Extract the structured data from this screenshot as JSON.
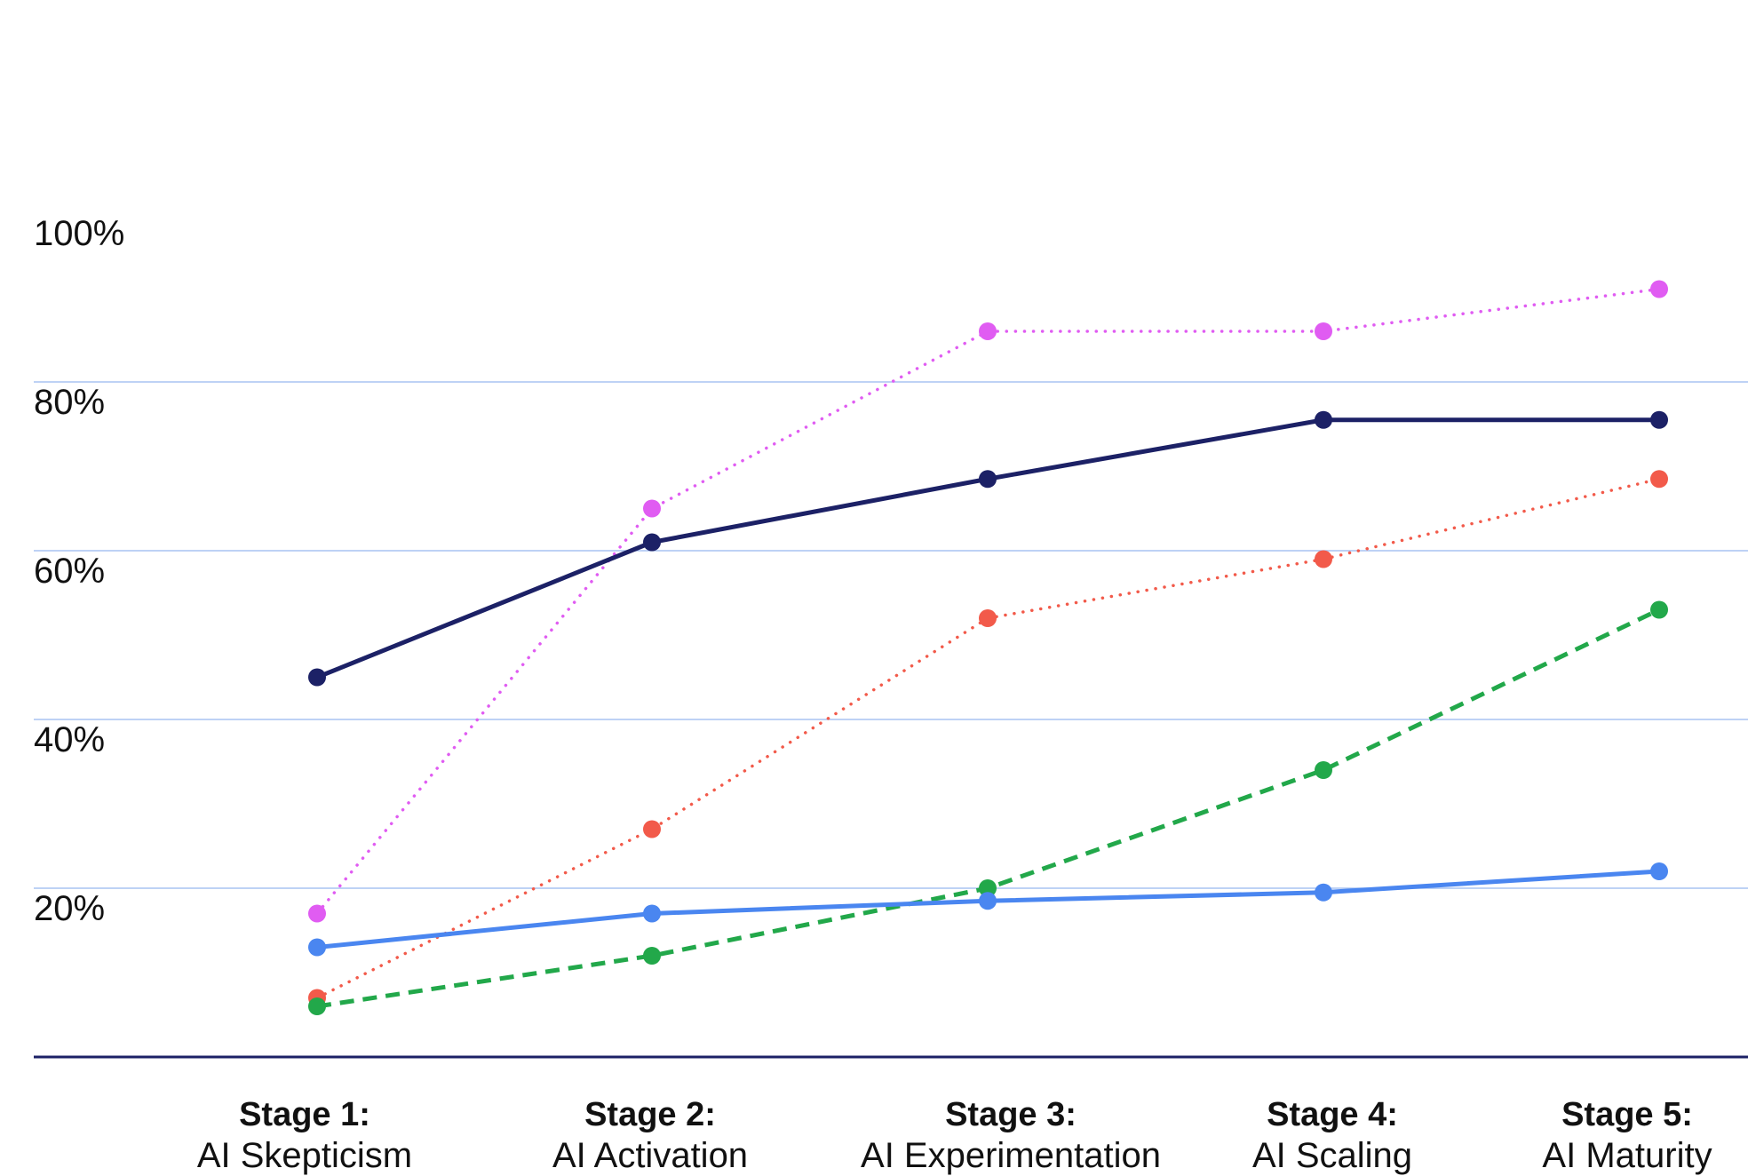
{
  "chart_data": {
    "type": "line",
    "categories": [
      {
        "line1": "Stage 1:",
        "line2": "AI Skepticism"
      },
      {
        "line1": "Stage 2:",
        "line2": "AI Activation"
      },
      {
        "line1": "Stage 3:",
        "line2": "AI Experimentation"
      },
      {
        "line1": "Stage 4:",
        "line2": "AI Scaling"
      },
      {
        "line1": "Stage 5:",
        "line2": "AI Maturity"
      }
    ],
    "yticks": [
      "20%",
      "40%",
      "60%",
      "80%",
      "100%"
    ],
    "ylim": [
      0,
      100
    ],
    "grid": true,
    "legend": "none",
    "series": [
      {
        "color": "#E05CF2",
        "dash": "dotted",
        "values": [
          17,
          65,
          86,
          86,
          91
        ]
      },
      {
        "color": "#1C2166",
        "dash": "solid",
        "values": [
          45,
          61,
          68.5,
          75.5,
          75.5
        ]
      },
      {
        "color": "#F25A4A",
        "dash": "dotted",
        "values": [
          7,
          27,
          52,
          59,
          68.5
        ]
      },
      {
        "color": "#22A84A",
        "dash": "dashed",
        "values": [
          6,
          12,
          20,
          34,
          53
        ]
      },
      {
        "color": "#4A86F0",
        "dash": "solid",
        "values": [
          13,
          17,
          18.5,
          19.5,
          22
        ]
      }
    ]
  }
}
